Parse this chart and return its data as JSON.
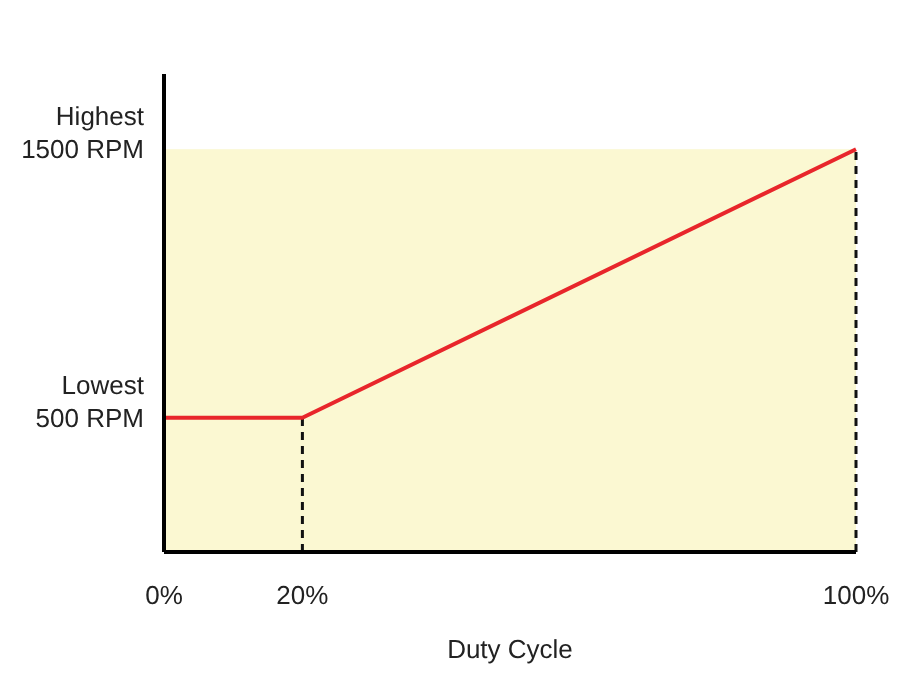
{
  "chart_data": {
    "type": "line",
    "xlabel": "Duty Cycle",
    "x": [
      0,
      20,
      100
    ],
    "series": [
      {
        "color": "#e8262b",
        "values": [
          500,
          500,
          1500
        ]
      }
    ],
    "xlim": [
      0,
      100
    ],
    "ylim": [
      0,
      1780
    ],
    "xticks": [
      {
        "value": 0,
        "label": "0%"
      },
      {
        "value": 20,
        "label": "20%"
      },
      {
        "value": 100,
        "label": "100%"
      }
    ],
    "yticks": [
      {
        "value": 500,
        "label": "500 RPM"
      },
      {
        "value": 1500,
        "label": "1500 RPM"
      }
    ],
    "annotations": [
      "Lowest",
      "Highest"
    ],
    "bands": [
      {
        "axis": "y",
        "from": 0,
        "to": 1500,
        "color": "#fbf8d2"
      }
    ],
    "ref_lines": [
      {
        "axis": "x",
        "value": 20,
        "line_style": "dashed",
        "color": "#111111"
      },
      {
        "axis": "x",
        "value": 100,
        "line_style": "dashed",
        "color": "#111111"
      }
    ],
    "grid": false,
    "marker": "none",
    "line_style": "solid"
  }
}
